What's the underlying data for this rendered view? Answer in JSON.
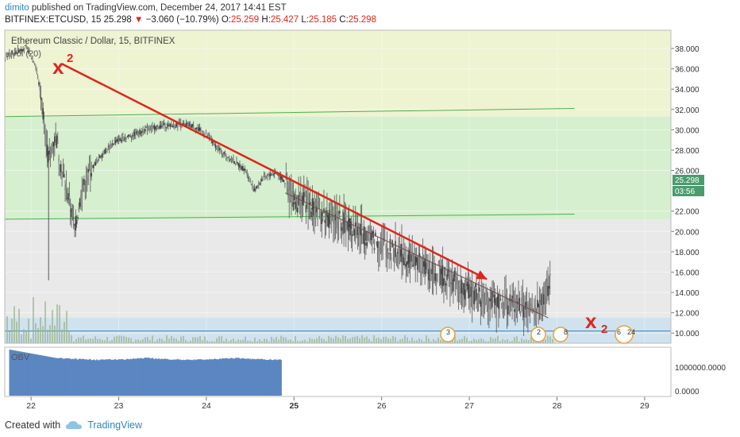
{
  "header": {
    "user": "dimito",
    "published_text": "published on TradingView.com, December 24, 2017 14:41 EST",
    "symbol": "BITFINEX:ETCUSD, 15",
    "last": "25.298",
    "arrow": "▼",
    "change": "−3.060 (−10.79%)",
    "ohlc": [
      {
        "label": "O:",
        "value": "25.259"
      },
      {
        "label": "H:",
        "value": "25.427"
      },
      {
        "label": "L:",
        "value": "25.185"
      },
      {
        "label": "C:",
        "value": "25.298"
      }
    ]
  },
  "pane_labels": {
    "title": "Ethereum Classic / Dollar, 15, BITFINEX",
    "vol": "Vol (20)",
    "obv": "OBV"
  },
  "annotations": {
    "top_text": "x",
    "top_sup": "2",
    "bottom_text": "x",
    "bottom_sub": "2",
    "event_badges": [
      "3",
      "2",
      "8",
      "6",
      "24"
    ]
  },
  "price_badges": {
    "last": "25.298",
    "countdown": "03:56"
  },
  "footer": {
    "created_with": "Created with",
    "brand": "TradingView"
  },
  "colors": {
    "zone_yellow": "#eef3d2",
    "zone_green": "#d6efcf",
    "zone_gray": "#e9e9e9",
    "zone_blue": "#cfe2ee",
    "line_green": "#4caf50",
    "candle": "#555555",
    "arrow": "#e0251b",
    "obv_bar": "#5b86c1",
    "badge": "#4a9c6d"
  },
  "chart_data": {
    "type": "candlestick",
    "title": "Ethereum Classic / Dollar, 15, BITFINEX",
    "y_ticks": [
      "38.000",
      "36.000",
      "34.000",
      "32.000",
      "30.000",
      "28.000",
      "26.000",
      "22.000",
      "20.000",
      "18.000",
      "16.000",
      "14.000",
      "12.000",
      "10.000"
    ],
    "x_ticks": [
      "22",
      "23",
      "24",
      "25",
      "26",
      "27",
      "28",
      "29"
    ],
    "ylim": [
      9.0,
      39.8
    ],
    "xlim": [
      21.7,
      29.3
    ],
    "obv_ticks": [
      "1000000.0000",
      "0.0000"
    ],
    "zones": [
      {
        "from": 31.3,
        "to": 39.8,
        "color": "yellow"
      },
      {
        "from": 21.2,
        "to": 31.3,
        "color": "green"
      },
      {
        "from": 11.5,
        "to": 21.2,
        "color": "gray"
      },
      {
        "from": 9.0,
        "to": 11.5,
        "color": "blue"
      }
    ],
    "green_lines": [
      {
        "x0": 21.7,
        "y0": 31.3,
        "x1": 28.2,
        "y1": 32.1
      },
      {
        "x0": 21.7,
        "y0": 21.2,
        "x1": 28.2,
        "y1": 21.7
      }
    ],
    "blue_line": {
      "y": 10.2
    },
    "trend_arrow": {
      "x0": 22.35,
      "y0": 36.5,
      "x1": 27.2,
      "y1": 15.3
    },
    "thin_trend": {
      "x0": 24.9,
      "y0": 23.8,
      "x1": 27.9,
      "y1": 11.5
    },
    "price_path": [
      [
        21.7,
        37.2
      ],
      [
        21.85,
        37.8
      ],
      [
        21.95,
        38.1
      ],
      [
        22.05,
        36.5
      ],
      [
        22.12,
        33.0
      ],
      [
        22.2,
        27.0
      ],
      [
        22.28,
        29.5
      ],
      [
        22.35,
        26.0
      ],
      [
        22.42,
        23.5
      ],
      [
        22.5,
        20.3
      ],
      [
        22.58,
        24.0
      ],
      [
        22.68,
        26.0
      ],
      [
        22.8,
        27.5
      ],
      [
        22.95,
        28.8
      ],
      [
        23.1,
        29.3
      ],
      [
        23.3,
        30.0
      ],
      [
        23.5,
        30.4
      ],
      [
        23.7,
        30.5
      ],
      [
        23.85,
        30.4
      ],
      [
        24.0,
        29.5
      ],
      [
        24.15,
        28.0
      ],
      [
        24.3,
        27.0
      ],
      [
        24.45,
        26.0
      ],
      [
        24.55,
        24.0
      ],
      [
        24.65,
        25.3
      ],
      [
        24.8,
        25.8
      ],
      [
        24.9,
        24.8
      ],
      [
        25.0,
        23.0
      ],
      [
        25.15,
        22.8
      ],
      [
        25.35,
        21.5
      ],
      [
        25.55,
        21.0
      ],
      [
        25.75,
        20.0
      ],
      [
        25.95,
        19.0
      ],
      [
        26.15,
        18.0
      ],
      [
        26.35,
        17.3
      ],
      [
        26.55,
        16.0
      ],
      [
        26.75,
        15.5
      ],
      [
        26.95,
        14.3
      ],
      [
        27.15,
        13.5
      ],
      [
        27.35,
        12.8
      ],
      [
        27.55,
        12.8
      ],
      [
        27.75,
        11.9
      ],
      [
        27.93,
        15.2
      ]
    ]
  }
}
